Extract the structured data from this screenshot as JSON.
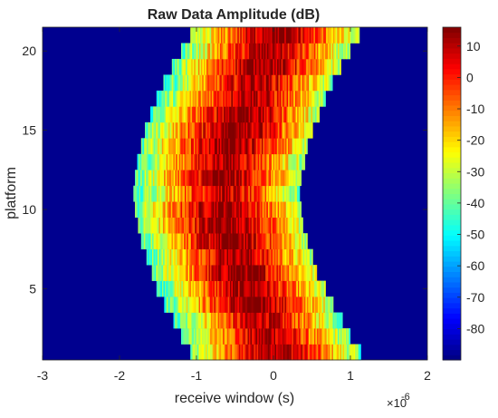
{
  "chart_data": {
    "type": "heatmap",
    "title": "Raw Data Amplitude (dB)",
    "xlabel": "receive window (s)",
    "ylabel": "platform",
    "x_exponent_label": "×10",
    "x_exponent_power": "-6",
    "xlim": [
      -3,
      2
    ],
    "ylim": [
      0.5,
      21.5
    ],
    "x_ticks": [
      -3,
      -2,
      -1,
      0,
      1,
      2
    ],
    "y_ticks": [
      5,
      10,
      15,
      20
    ],
    "colorbar": {
      "range": [
        -90,
        16
      ],
      "ticks": [
        10,
        0,
        -10,
        -20,
        -30,
        -40,
        -50,
        -60,
        -70,
        -80
      ],
      "colormap": "jet"
    },
    "background_color": "#00008F",
    "platforms": [
      1,
      2,
      3,
      4,
      5,
      6,
      7,
      8,
      9,
      10,
      11,
      12,
      13,
      14,
      15,
      16,
      17,
      18,
      19,
      20,
      21
    ],
    "window_start_us": [
      -1.08,
      -1.2,
      -1.3,
      -1.42,
      -1.52,
      -1.58,
      -1.65,
      -1.72,
      -1.76,
      -1.8,
      -1.82,
      -1.8,
      -1.77,
      -1.72,
      -1.67,
      -1.6,
      -1.52,
      -1.43,
      -1.32,
      -1.2,
      -1.08
    ],
    "window_end_us": [
      1.12,
      0.98,
      0.88,
      0.76,
      0.66,
      0.56,
      0.5,
      0.44,
      0.38,
      0.36,
      0.34,
      0.36,
      0.4,
      0.44,
      0.5,
      0.58,
      0.66,
      0.76,
      0.86,
      0.98,
      1.1
    ],
    "peak_delay_us": [
      0.02,
      -0.08,
      -0.16,
      -0.25,
      -0.34,
      -0.42,
      -0.5,
      -0.56,
      -0.62,
      -0.66,
      -0.68,
      -0.66,
      -0.62,
      -0.56,
      -0.5,
      -0.42,
      -0.34,
      -0.25,
      -0.16,
      -0.07,
      0.03
    ],
    "peak_amplitude_db": 14,
    "edge_amplitude_db": -45
  }
}
